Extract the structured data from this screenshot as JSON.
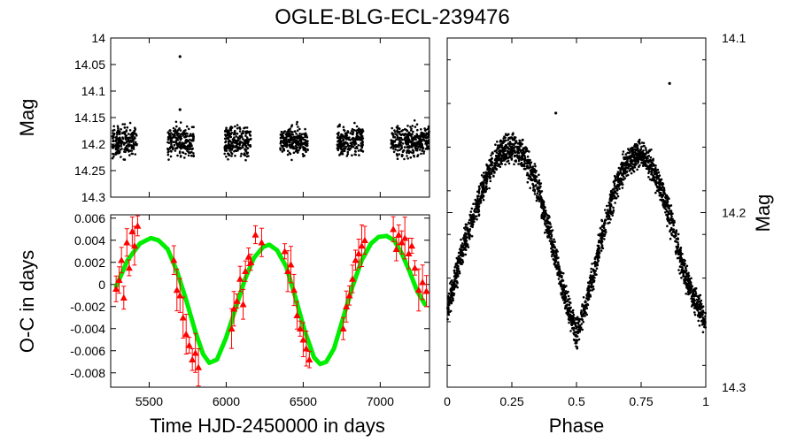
{
  "chart_data": [
    {
      "type": "scatter",
      "id": "light-curve",
      "title": "OGLE-BLG-ECL-239476",
      "xlabel": "",
      "ylabel": "Mag",
      "xlim": [
        5250,
        7320
      ],
      "ylim": [
        14.3,
        14.0
      ],
      "y_inverted": true,
      "yticks": [
        "14",
        "14.05",
        "14.1",
        "14.15",
        "14.2",
        "14.25",
        "14.3"
      ],
      "ytick_values": [
        14.0,
        14.05,
        14.1,
        14.15,
        14.2,
        14.25,
        14.3
      ],
      "observing_seasons": [
        {
          "start": 5260,
          "end": 5420
        },
        {
          "start": 5620,
          "end": 5790
        },
        {
          "start": 5990,
          "end": 6160
        },
        {
          "start": 6350,
          "end": 6530
        },
        {
          "start": 6720,
          "end": 6890
        },
        {
          "start": 7070,
          "end": 7320
        }
      ],
      "magnitude_band": [
        14.155,
        14.235
      ],
      "outliers": [
        {
          "x": 5700,
          "y": 14.035
        },
        {
          "x": 5700,
          "y": 14.135
        }
      ],
      "series": [
        {
          "name": "photometry",
          "marker": "dot",
          "color": "#000000"
        }
      ]
    },
    {
      "type": "scatter",
      "id": "o-c",
      "xlabel": "Time HJD-2450000 in days",
      "ylabel": "O-C in days",
      "xlim": [
        5250,
        7320
      ],
      "ylim": [
        -0.0093,
        0.0063
      ],
      "xticks": [
        "5500",
        "6000",
        "6500",
        "7000"
      ],
      "xtick_values": [
        5500,
        6000,
        6500,
        7000
      ],
      "yticks": [
        "0.006",
        "0.004",
        "0.002",
        "0",
        "-0.002",
        "-0.004",
        "-0.006",
        "-0.008"
      ],
      "ytick_values": [
        0.006,
        0.004,
        0.002,
        0,
        -0.002,
        -0.004,
        -0.006,
        -0.008
      ],
      "series": [
        {
          "name": "O-C measurements",
          "marker": "triangle",
          "color": "#ff0000",
          "error_bars": true,
          "x": [
            5285,
            5305,
            5320,
            5335,
            5355,
            5370,
            5390,
            5405,
            5425,
            5660,
            5680,
            5700,
            5720,
            5740,
            5760,
            5780,
            5800,
            5820,
            6035,
            6050,
            6070,
            6090,
            6110,
            6125,
            6145,
            6160,
            6190,
            6230,
            6380,
            6400,
            6420,
            6440,
            6460,
            6480,
            6500,
            6520,
            6540,
            6760,
            6780,
            6800,
            6820,
            6840,
            6860,
            6880,
            6900,
            7085,
            7105,
            7120,
            7140,
            7160,
            7185,
            7205,
            7225,
            7250,
            7275,
            7300
          ],
          "y": [
            -0.0004,
            0.0004,
            0.0022,
            -0.0012,
            0.0038,
            0.0015,
            0.0048,
            0.0035,
            0.0053,
            0.0022,
            -0.0005,
            -0.001,
            -0.003,
            -0.0045,
            -0.0055,
            -0.0068,
            -0.0062,
            -0.0075,
            -0.004,
            -0.0022,
            -0.0015,
            0.0005,
            -0.0018,
            0.0012,
            0.0025,
            0.002,
            0.0045,
            0.0038,
            0.003,
            0.0012,
            0.0018,
            -0.0005,
            -0.0028,
            -0.004,
            -0.005,
            -0.0058,
            -0.0068,
            -0.004,
            -0.002,
            -0.001,
            0.0005,
            0.0022,
            0.0028,
            0.0035,
            0.004,
            0.005,
            0.0032,
            0.0045,
            0.0038,
            0.0042,
            0.0028,
            0.0035,
            0.0015,
            -0.0005,
            0.0002,
            -0.0006
          ]
        },
        {
          "name": "sinusoidal fit",
          "marker": "line",
          "color": "#00ee00",
          "x": [
            5285,
            5360,
            5440,
            5510,
            5560,
            5620,
            5680,
            5740,
            5800,
            5850,
            5890,
            5940,
            6000,
            6060,
            6120,
            6180,
            6240,
            6280,
            6330,
            6390,
            6450,
            6510,
            6570,
            6610,
            6650,
            6700,
            6760,
            6820,
            6880,
            6940,
            6990,
            7040,
            7090,
            7140,
            7190,
            7240,
            7290
          ],
          "y": [
            -0.0002,
            0.0022,
            0.0037,
            0.0042,
            0.004,
            0.0032,
            0.0012,
            -0.0014,
            -0.0043,
            -0.0063,
            -0.0071,
            -0.0068,
            -0.0048,
            -0.0022,
            0.0004,
            0.0024,
            0.0034,
            0.0036,
            0.0031,
            0.0016,
            -0.0012,
            -0.0042,
            -0.0066,
            -0.0072,
            -0.007,
            -0.0058,
            -0.003,
            -0.0002,
            0.0022,
            0.0037,
            0.0043,
            0.0044,
            0.004,
            0.0028,
            0.0012,
            -0.0006,
            -0.0018
          ]
        }
      ]
    },
    {
      "type": "scatter",
      "id": "phased-light-curve",
      "xlabel": "Phase",
      "ylabel": "Mag",
      "xlim": [
        0,
        1
      ],
      "ylim": [
        14.3,
        14.1
      ],
      "y_inverted": true,
      "xticks": [
        "0",
        "0.25",
        "0.5",
        "0.75",
        "1"
      ],
      "xtick_values": [
        0,
        0.25,
        0.5,
        0.75,
        1
      ],
      "yticks": [
        "14.1",
        "14.2",
        "14.3"
      ],
      "ytick_values": [
        14.1,
        14.2,
        14.3
      ],
      "envelope_phase": [
        0,
        0.05,
        0.1,
        0.15,
        0.2,
        0.25,
        0.3,
        0.35,
        0.4,
        0.45,
        0.5,
        0.55,
        0.6,
        0.65,
        0.7,
        0.75,
        0.8,
        0.85,
        0.9,
        0.95,
        1.0
      ],
      "envelope_mag": [
        14.256,
        14.226,
        14.203,
        14.181,
        14.166,
        14.162,
        14.168,
        14.186,
        14.214,
        14.246,
        14.27,
        14.245,
        14.213,
        14.186,
        14.17,
        14.166,
        14.176,
        14.196,
        14.226,
        14.248,
        14.262
      ],
      "scatter_half_width_mag": 0.012,
      "outliers": [
        {
          "x": 0.86,
          "y": 14.126
        },
        {
          "x": 0.42,
          "y": 14.143
        }
      ],
      "series": [
        {
          "name": "phased photometry",
          "marker": "dot",
          "color": "#000000"
        }
      ]
    }
  ]
}
